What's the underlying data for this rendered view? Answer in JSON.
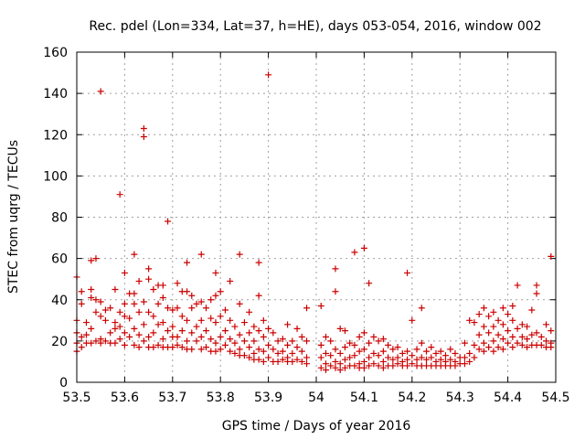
{
  "chart_data": {
    "type": "scatter",
    "title": "Rec. pdel (Lon=334, Lat=37, h=HE), days 053-054, 2016, window 002",
    "xlabel": "GPS time / Days of year 2016",
    "ylabel": "STEC from uqrg / TECUs",
    "xlim": [
      53.5,
      54.5
    ],
    "ylim": [
      0,
      160
    ],
    "x_ticks": [
      "53.5",
      "53.6",
      "53.7",
      "53.8",
      "53.9",
      "54",
      "54.1",
      "54.2",
      "54.3",
      "54.4",
      "54.5"
    ],
    "y_ticks": [
      "0",
      "20",
      "40",
      "60",
      "80",
      "100",
      "120",
      "140",
      "160"
    ],
    "grid": true,
    "marker": "plus",
    "color": "#cc0000",
    "points": [
      [
        53.5,
        51
      ],
      [
        53.5,
        30
      ],
      [
        53.5,
        24
      ],
      [
        53.5,
        19
      ],
      [
        53.5,
        15
      ],
      [
        53.51,
        44
      ],
      [
        53.51,
        38
      ],
      [
        53.51,
        22
      ],
      [
        53.51,
        17
      ],
      [
        53.52,
        29
      ],
      [
        53.52,
        23
      ],
      [
        53.52,
        19
      ],
      [
        53.53,
        59
      ],
      [
        53.53,
        45
      ],
      [
        53.53,
        41
      ],
      [
        53.53,
        26
      ],
      [
        53.53,
        19
      ],
      [
        53.54,
        60
      ],
      [
        53.54,
        40
      ],
      [
        53.54,
        34
      ],
      [
        53.54,
        20
      ],
      [
        53.55,
        141
      ],
      [
        53.55,
        39
      ],
      [
        53.55,
        32
      ],
      [
        53.55,
        21
      ],
      [
        53.55,
        19
      ],
      [
        53.56,
        35
      ],
      [
        53.56,
        30
      ],
      [
        53.56,
        20
      ],
      [
        53.57,
        36
      ],
      [
        53.57,
        24
      ],
      [
        53.57,
        19
      ],
      [
        53.58,
        45
      ],
      [
        53.58,
        29
      ],
      [
        53.58,
        26
      ],
      [
        53.58,
        19
      ],
      [
        53.59,
        91
      ],
      [
        53.59,
        34
      ],
      [
        53.59,
        27
      ],
      [
        53.59,
        21
      ],
      [
        53.6,
        53
      ],
      [
        53.6,
        38
      ],
      [
        53.6,
        32
      ],
      [
        53.6,
        24
      ],
      [
        53.6,
        18
      ],
      [
        53.61,
        43
      ],
      [
        53.61,
        31
      ],
      [
        53.61,
        22
      ],
      [
        53.62,
        62
      ],
      [
        53.62,
        43
      ],
      [
        53.62,
        38
      ],
      [
        53.62,
        26
      ],
      [
        53.62,
        18
      ],
      [
        53.63,
        49
      ],
      [
        53.63,
        34
      ],
      [
        53.63,
        23
      ],
      [
        53.63,
        17
      ],
      [
        53.64,
        123
      ],
      [
        53.64,
        119
      ],
      [
        53.64,
        39
      ],
      [
        53.64,
        28
      ],
      [
        53.64,
        20
      ],
      [
        53.65,
        55
      ],
      [
        53.65,
        50
      ],
      [
        53.65,
        34
      ],
      [
        53.65,
        22
      ],
      [
        53.65,
        17
      ],
      [
        53.66,
        45
      ],
      [
        53.66,
        32
      ],
      [
        53.66,
        24
      ],
      [
        53.66,
        17
      ],
      [
        53.67,
        47
      ],
      [
        53.67,
        38
      ],
      [
        53.67,
        28
      ],
      [
        53.67,
        18
      ],
      [
        53.68,
        47
      ],
      [
        53.68,
        41
      ],
      [
        53.68,
        29
      ],
      [
        53.68,
        21
      ],
      [
        53.68,
        17
      ],
      [
        53.69,
        78
      ],
      [
        53.69,
        36
      ],
      [
        53.69,
        25
      ],
      [
        53.69,
        17
      ],
      [
        53.7,
        35
      ],
      [
        53.7,
        27
      ],
      [
        53.7,
        22
      ],
      [
        53.7,
        17
      ],
      [
        53.71,
        48
      ],
      [
        53.71,
        36
      ],
      [
        53.71,
        22
      ],
      [
        53.71,
        18
      ],
      [
        53.72,
        44
      ],
      [
        53.72,
        32
      ],
      [
        53.72,
        25
      ],
      [
        53.72,
        17
      ],
      [
        53.73,
        58
      ],
      [
        53.73,
        44
      ],
      [
        53.73,
        30
      ],
      [
        53.73,
        20
      ],
      [
        53.73,
        16
      ],
      [
        53.74,
        42
      ],
      [
        53.74,
        36
      ],
      [
        53.74,
        24
      ],
      [
        53.74,
        16
      ],
      [
        53.75,
        38
      ],
      [
        53.75,
        27
      ],
      [
        53.75,
        20
      ],
      [
        53.76,
        62
      ],
      [
        53.76,
        39
      ],
      [
        53.76,
        30
      ],
      [
        53.76,
        22
      ],
      [
        53.76,
        16
      ],
      [
        53.77,
        36
      ],
      [
        53.77,
        25
      ],
      [
        53.77,
        17
      ],
      [
        53.78,
        40
      ],
      [
        53.78,
        31
      ],
      [
        53.78,
        21
      ],
      [
        53.78,
        15
      ],
      [
        53.79,
        53
      ],
      [
        53.79,
        42
      ],
      [
        53.79,
        29
      ],
      [
        53.79,
        19
      ],
      [
        53.79,
        15
      ],
      [
        53.8,
        44
      ],
      [
        53.8,
        32
      ],
      [
        53.8,
        22
      ],
      [
        53.8,
        16
      ],
      [
        53.81,
        35
      ],
      [
        53.81,
        25
      ],
      [
        53.81,
        18
      ],
      [
        53.82,
        49
      ],
      [
        53.82,
        30
      ],
      [
        53.82,
        21
      ],
      [
        53.82,
        15
      ],
      [
        53.83,
        27
      ],
      [
        53.83,
        19
      ],
      [
        53.83,
        14
      ],
      [
        53.84,
        62
      ],
      [
        53.84,
        38
      ],
      [
        53.84,
        23
      ],
      [
        53.84,
        16
      ],
      [
        53.84,
        13
      ],
      [
        53.85,
        29
      ],
      [
        53.85,
        20
      ],
      [
        53.85,
        13
      ],
      [
        53.86,
        34
      ],
      [
        53.86,
        24
      ],
      [
        53.86,
        17
      ],
      [
        53.86,
        12
      ],
      [
        53.87,
        27
      ],
      [
        53.87,
        20
      ],
      [
        53.87,
        14
      ],
      [
        53.87,
        11
      ],
      [
        53.88,
        58
      ],
      [
        53.88,
        42
      ],
      [
        53.88,
        25
      ],
      [
        53.88,
        16
      ],
      [
        53.88,
        11
      ],
      [
        53.89,
        30
      ],
      [
        53.89,
        22
      ],
      [
        53.89,
        15
      ],
      [
        53.89,
        10
      ],
      [
        53.9,
        149
      ],
      [
        53.9,
        26
      ],
      [
        53.9,
        18
      ],
      [
        53.9,
        12
      ],
      [
        53.91,
        24
      ],
      [
        53.91,
        16
      ],
      [
        53.91,
        10
      ],
      [
        53.92,
        20
      ],
      [
        53.92,
        14
      ],
      [
        53.92,
        10
      ],
      [
        53.93,
        21
      ],
      [
        53.93,
        15
      ],
      [
        53.93,
        11
      ],
      [
        53.94,
        28
      ],
      [
        53.94,
        18
      ],
      [
        53.94,
        12
      ],
      [
        53.94,
        10
      ],
      [
        53.95,
        20
      ],
      [
        53.95,
        14
      ],
      [
        53.95,
        10
      ],
      [
        53.96,
        26
      ],
      [
        53.96,
        17
      ],
      [
        53.96,
        11
      ],
      [
        53.97,
        22
      ],
      [
        53.97,
        15
      ],
      [
        53.97,
        10
      ],
      [
        53.98,
        36
      ],
      [
        53.98,
        20
      ],
      [
        53.98,
        12
      ],
      [
        53.98,
        9
      ],
      [
        54.01,
        37
      ],
      [
        54.01,
        18
      ],
      [
        54.01,
        12
      ],
      [
        54.01,
        7
      ],
      [
        54.02,
        22
      ],
      [
        54.02,
        14
      ],
      [
        54.02,
        9
      ],
      [
        54.02,
        6
      ],
      [
        54.03,
        20
      ],
      [
        54.03,
        13
      ],
      [
        54.03,
        8
      ],
      [
        54.04,
        55
      ],
      [
        54.04,
        44
      ],
      [
        54.04,
        16
      ],
      [
        54.04,
        10
      ],
      [
        54.04,
        7
      ],
      [
        54.05,
        26
      ],
      [
        54.05,
        14
      ],
      [
        54.05,
        9
      ],
      [
        54.05,
        6
      ],
      [
        54.06,
        25
      ],
      [
        54.06,
        17
      ],
      [
        54.06,
        11
      ],
      [
        54.06,
        7
      ],
      [
        54.07,
        19
      ],
      [
        54.07,
        12
      ],
      [
        54.07,
        8
      ],
      [
        54.08,
        63
      ],
      [
        54.08,
        18
      ],
      [
        54.08,
        13
      ],
      [
        54.08,
        8
      ],
      [
        54.09,
        22
      ],
      [
        54.09,
        15
      ],
      [
        54.09,
        9
      ],
      [
        54.09,
        7
      ],
      [
        54.1,
        65
      ],
      [
        54.1,
        24
      ],
      [
        54.1,
        16
      ],
      [
        54.1,
        10
      ],
      [
        54.1,
        7
      ],
      [
        54.11,
        48
      ],
      [
        54.11,
        19
      ],
      [
        54.11,
        12
      ],
      [
        54.11,
        8
      ],
      [
        54.12,
        22
      ],
      [
        54.12,
        14
      ],
      [
        54.12,
        9
      ],
      [
        54.13,
        20
      ],
      [
        54.13,
        13
      ],
      [
        54.13,
        8
      ],
      [
        54.14,
        21
      ],
      [
        54.14,
        15
      ],
      [
        54.14,
        10
      ],
      [
        54.14,
        7
      ],
      [
        54.15,
        18
      ],
      [
        54.15,
        12
      ],
      [
        54.15,
        8
      ],
      [
        54.16,
        16
      ],
      [
        54.16,
        11
      ],
      [
        54.16,
        8
      ],
      [
        54.17,
        17
      ],
      [
        54.17,
        12
      ],
      [
        54.17,
        9
      ],
      [
        54.18,
        14
      ],
      [
        54.18,
        10
      ],
      [
        54.18,
        8
      ],
      [
        54.19,
        53
      ],
      [
        54.19,
        15
      ],
      [
        54.19,
        11
      ],
      [
        54.19,
        8
      ],
      [
        54.2,
        30
      ],
      [
        54.2,
        13
      ],
      [
        54.2,
        9
      ],
      [
        54.21,
        16
      ],
      [
        54.21,
        11
      ],
      [
        54.21,
        8
      ],
      [
        54.22,
        36
      ],
      [
        54.22,
        19
      ],
      [
        54.22,
        12
      ],
      [
        54.22,
        8
      ],
      [
        54.23,
        15
      ],
      [
        54.23,
        11
      ],
      [
        54.23,
        8
      ],
      [
        54.24,
        17
      ],
      [
        54.24,
        12
      ],
      [
        54.24,
        8
      ],
      [
        54.25,
        14
      ],
      [
        54.25,
        10
      ],
      [
        54.25,
        8
      ],
      [
        54.26,
        15
      ],
      [
        54.26,
        11
      ],
      [
        54.26,
        8
      ],
      [
        54.27,
        13
      ],
      [
        54.27,
        10
      ],
      [
        54.27,
        8
      ],
      [
        54.28,
        16
      ],
      [
        54.28,
        11
      ],
      [
        54.28,
        8
      ],
      [
        54.29,
        14
      ],
      [
        54.29,
        10
      ],
      [
        54.29,
        8
      ],
      [
        54.3,
        12
      ],
      [
        54.3,
        9
      ],
      [
        54.31,
        19
      ],
      [
        54.31,
        12
      ],
      [
        54.31,
        9
      ],
      [
        54.32,
        30
      ],
      [
        54.32,
        14
      ],
      [
        54.32,
        10
      ],
      [
        54.33,
        29
      ],
      [
        54.33,
        18
      ],
      [
        54.33,
        12
      ],
      [
        54.34,
        33
      ],
      [
        54.34,
        23
      ],
      [
        54.34,
        16
      ],
      [
        54.35,
        36
      ],
      [
        54.35,
        27
      ],
      [
        54.35,
        19
      ],
      [
        54.35,
        15
      ],
      [
        54.36,
        32
      ],
      [
        54.36,
        24
      ],
      [
        54.36,
        17
      ],
      [
        54.37,
        34
      ],
      [
        54.37,
        27
      ],
      [
        54.37,
        20
      ],
      [
        54.37,
        15
      ],
      [
        54.38,
        30
      ],
      [
        54.38,
        23
      ],
      [
        54.38,
        17
      ],
      [
        54.39,
        36
      ],
      [
        54.39,
        28
      ],
      [
        54.39,
        21
      ],
      [
        54.39,
        16
      ],
      [
        54.4,
        33
      ],
      [
        54.4,
        25
      ],
      [
        54.4,
        19
      ],
      [
        54.41,
        37
      ],
      [
        54.41,
        30
      ],
      [
        54.41,
        22
      ],
      [
        54.41,
        17
      ],
      [
        54.42,
        47
      ],
      [
        54.42,
        26
      ],
      [
        54.42,
        19
      ],
      [
        54.43,
        28
      ],
      [
        54.43,
        22
      ],
      [
        54.43,
        18
      ],
      [
        54.44,
        27
      ],
      [
        54.44,
        21
      ],
      [
        54.44,
        17
      ],
      [
        54.45,
        35
      ],
      [
        54.45,
        23
      ],
      [
        54.45,
        18
      ],
      [
        54.46,
        47
      ],
      [
        54.46,
        43
      ],
      [
        54.46,
        24
      ],
      [
        54.46,
        18
      ],
      [
        54.47,
        22
      ],
      [
        54.47,
        18
      ],
      [
        54.48,
        28
      ],
      [
        54.48,
        20
      ],
      [
        54.48,
        17
      ],
      [
        54.49,
        61
      ],
      [
        54.49,
        25
      ],
      [
        54.49,
        19
      ],
      [
        54.49,
        17
      ]
    ]
  }
}
